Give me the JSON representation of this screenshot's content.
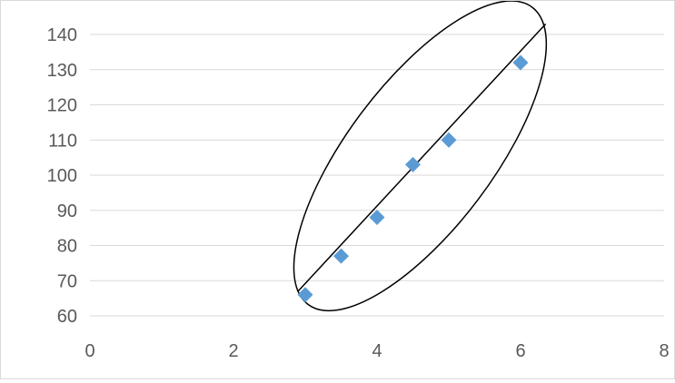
{
  "chart_data": {
    "type": "scatter",
    "title": "",
    "xlabel": "",
    "ylabel": "",
    "xlim": [
      0,
      8
    ],
    "ylim": [
      60,
      140
    ],
    "x_ticks": [
      0,
      2,
      4,
      6,
      8
    ],
    "y_ticks": [
      60,
      70,
      80,
      90,
      100,
      110,
      120,
      130,
      140
    ],
    "grid": {
      "horizontal": true,
      "vertical": false
    },
    "legend": "none",
    "series": [
      {
        "marker": "diamond",
        "color": "#5b9bd5",
        "x": [
          3,
          3.5,
          4,
          4.5,
          5,
          6
        ],
        "y": [
          66,
          77,
          88,
          103,
          110,
          132
        ]
      }
    ],
    "annotations": [
      {
        "type": "line",
        "color": "#000000",
        "x": [
          2.9,
          6.35
        ],
        "y": [
          67,
          143
        ]
      },
      {
        "type": "ellipse",
        "color": "#000000",
        "center": [
          4.6,
          105.5
        ],
        "encloses": "all points"
      }
    ]
  }
}
